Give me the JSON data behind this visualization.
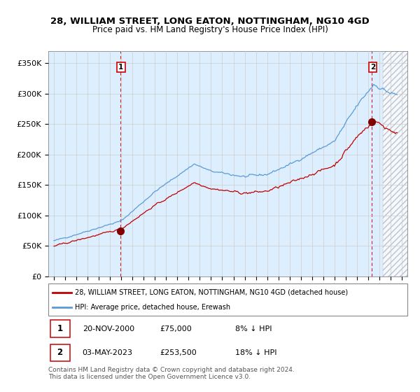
{
  "title": "28, WILLIAM STREET, LONG EATON, NOTTINGHAM, NG10 4GD",
  "subtitle": "Price paid vs. HM Land Registry's House Price Index (HPI)",
  "ylabel_ticks": [
    "£0",
    "£50K",
    "£100K",
    "£150K",
    "£200K",
    "£250K",
    "£300K",
    "£350K"
  ],
  "ytick_values": [
    0,
    50000,
    100000,
    150000,
    200000,
    250000,
    300000,
    350000
  ],
  "ylim": [
    0,
    370000
  ],
  "xlim_start": 1994.5,
  "xlim_end": 2026.5,
  "sale1_x": 2000.9,
  "sale1_y": 75000,
  "sale2_x": 2023.33,
  "sale2_y": 253500,
  "legend_line1": "28, WILLIAM STREET, LONG EATON, NOTTINGHAM, NG10 4GD (detached house)",
  "legend_line2": "HPI: Average price, detached house, Erewash",
  "table_row1": [
    "1",
    "20-NOV-2000",
    "£75,000",
    "8% ↓ HPI"
  ],
  "table_row2": [
    "2",
    "03-MAY-2023",
    "£253,500",
    "18% ↓ HPI"
  ],
  "footer": "Contains HM Land Registry data © Crown copyright and database right 2024.\nThis data is licensed under the Open Government Licence v3.0.",
  "hpi_color": "#5b9bd5",
  "price_color": "#c00000",
  "bg_fill_color": "#ddeeff",
  "sale_marker_color": "#800000",
  "vline_color": "#cc0000",
  "background_color": "#ffffff",
  "grid_color": "#cccccc"
}
